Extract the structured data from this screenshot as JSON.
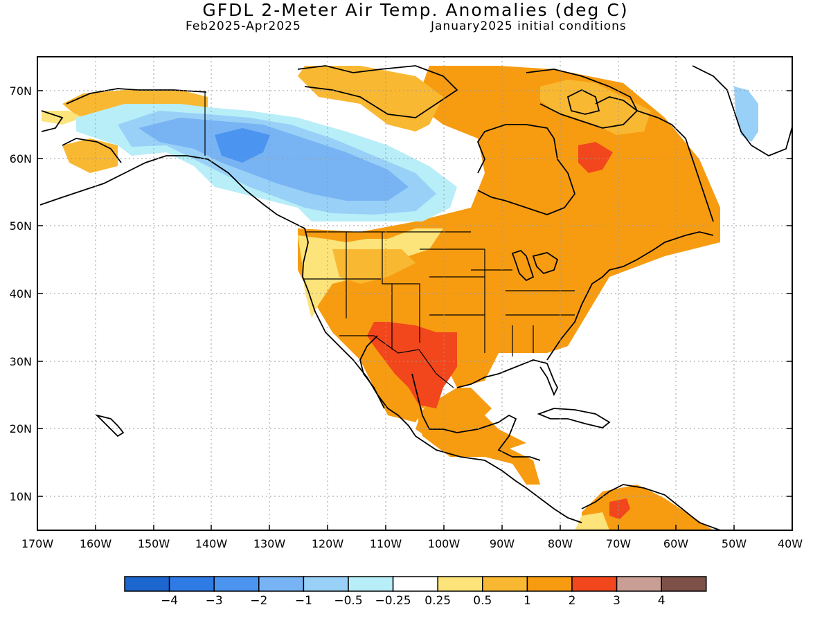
{
  "title": "GFDL 2-Meter Air Temp. Anomalies (deg C)",
  "period": "Feb2025-Apr2025",
  "init": "January2025 initial conditions",
  "lat_labels": [
    "70N",
    "60N",
    "50N",
    "40N",
    "30N",
    "20N",
    "10N"
  ],
  "lon_labels": [
    "170W",
    "160W",
    "150W",
    "140W",
    "130W",
    "120W",
    "110W",
    "100W",
    "90W",
    "80W",
    "70W",
    "60W",
    "50W",
    "40W"
  ],
  "colorbar": {
    "colors": [
      "#1c66cf",
      "#2f7be6",
      "#4b94f0",
      "#78b4f4",
      "#98d0f7",
      "#b8eef8",
      "#ffffff",
      "#fce37a",
      "#f9b832",
      "#f79c11",
      "#f2461c",
      "#c99e95",
      "#7d5147"
    ],
    "labels": [
      "-4",
      "-3",
      "-2",
      "-1",
      "-0.5",
      "-0.25",
      "0.25",
      "0.5",
      "1",
      "2",
      "3",
      "4"
    ]
  }
}
